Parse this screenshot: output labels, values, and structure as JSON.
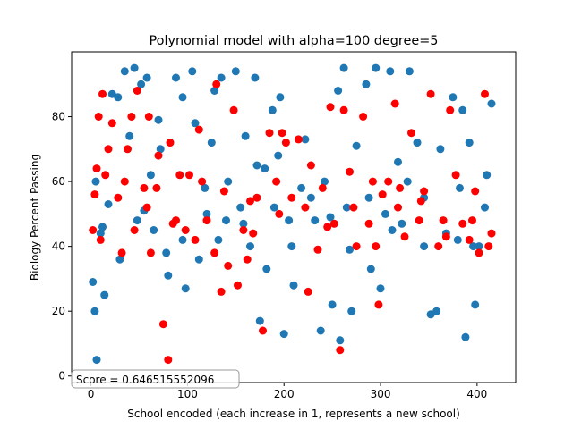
{
  "chart_data": {
    "type": "scatter",
    "title": "Polynomial model with alpha=100 degree=5",
    "xlabel": "School encoded (each increase in 1, represents a new school)",
    "ylabel": "Biology Percent Passing",
    "xlim": [
      -20,
      440
    ],
    "ylim": [
      -2,
      100
    ],
    "xticks": [
      0,
      100,
      200,
      300,
      400
    ],
    "yticks": [
      0,
      20,
      40,
      60,
      80
    ],
    "grid": false,
    "legend": "none",
    "annotation": "Score = 0.646515552096",
    "series": [
      {
        "color": "#1f77b4",
        "x": [
          2,
          4,
          6,
          10,
          14,
          18,
          22,
          28,
          30,
          35,
          40,
          45,
          48,
          52,
          58,
          62,
          65,
          70,
          72,
          80,
          88,
          95,
          98,
          105,
          108,
          112,
          120,
          125,
          128,
          132,
          135,
          140,
          150,
          155,
          160,
          165,
          170,
          175,
          180,
          182,
          188,
          194,
          196,
          200,
          205,
          210,
          222,
          228,
          232,
          238,
          242,
          250,
          256,
          258,
          262,
          265,
          270,
          275,
          285,
          290,
          295,
          300,
          305,
          310,
          318,
          322,
          330,
          338,
          345,
          352,
          358,
          362,
          375,
          380,
          385,
          388,
          392,
          398,
          402,
          410,
          415,
          5,
          12,
          55,
          78,
          95,
          118,
          142,
          158,
          172,
          190,
          208,
          218,
          248,
          268,
          288,
          312,
          328,
          345,
          368,
          382,
          396,
          408
        ],
        "y": [
          29,
          20,
          5,
          44,
          25,
          53,
          87,
          86,
          36,
          94,
          74,
          95,
          48,
          90,
          92,
          62,
          45,
          79,
          70,
          31,
          92,
          86,
          27,
          94,
          78,
          36,
          50,
          72,
          88,
          42,
          92,
          48,
          94,
          52,
          74,
          40,
          92,
          17,
          64,
          33,
          82,
          68,
          86,
          13,
          48,
          28,
          73,
          55,
          48,
          14,
          60,
          22,
          88,
          11,
          95,
          52,
          20,
          71,
          90,
          33,
          95,
          27,
          50,
          94,
          66,
          47,
          94,
          72,
          40,
          19,
          20,
          70,
          86,
          42,
          82,
          12,
          72,
          22,
          40,
          62,
          84,
          60,
          46,
          51,
          38,
          42,
          58,
          60,
          47,
          65,
          52,
          40,
          58,
          49,
          39,
          55,
          45,
          60,
          55,
          44,
          58,
          40,
          52
        ]
      },
      {
        "color": "#ff0000",
        "x": [
          2,
          4,
          6,
          8,
          12,
          15,
          18,
          22,
          28,
          32,
          38,
          42,
          45,
          48,
          55,
          60,
          62,
          68,
          70,
          75,
          80,
          82,
          85,
          92,
          98,
          102,
          108,
          112,
          120,
          128,
          130,
          135,
          142,
          148,
          152,
          158,
          162,
          168,
          172,
          178,
          185,
          192,
          198,
          202,
          208,
          215,
          225,
          228,
          235,
          240,
          248,
          252,
          258,
          262,
          268,
          275,
          282,
          288,
          292,
          298,
          302,
          308,
          315,
          320,
          325,
          332,
          340,
          345,
          352,
          360,
          365,
          372,
          378,
          385,
          392,
          398,
          402,
          408,
          412,
          10,
          35,
          58,
          88,
          115,
          138,
          165,
          195,
          222,
          245,
          272,
          295,
          318,
          342,
          368,
          395,
          415
        ],
        "y": [
          45,
          56,
          64,
          80,
          87,
          62,
          70,
          78,
          55,
          38,
          70,
          80,
          45,
          88,
          58,
          80,
          38,
          58,
          68,
          16,
          5,
          72,
          47,
          62,
          45,
          62,
          42,
          76,
          48,
          38,
          90,
          26,
          34,
          82,
          28,
          45,
          36,
          44,
          55,
          14,
          75,
          60,
          75,
          72,
          55,
          73,
          26,
          65,
          39,
          58,
          83,
          47,
          8,
          82,
          63,
          40,
          80,
          47,
          60,
          22,
          56,
          60,
          84,
          58,
          43,
          75,
          48,
          57,
          87,
          40,
          48,
          82,
          62,
          47,
          42,
          57,
          38,
          87,
          40,
          42,
          60,
          52,
          48,
          60,
          57,
          54,
          50,
          52,
          46,
          52,
          40,
          52,
          54,
          43,
          48,
          44
        ]
      }
    ]
  }
}
